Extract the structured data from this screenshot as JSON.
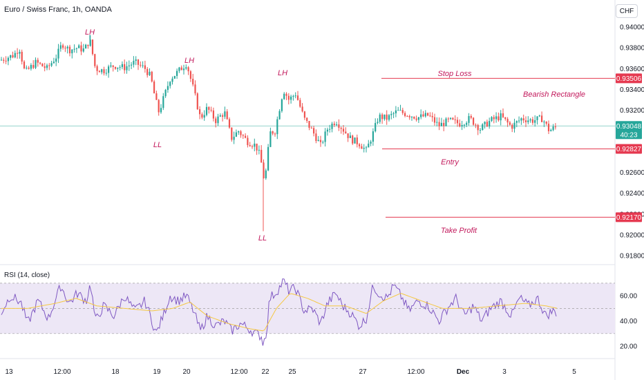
{
  "header": {
    "title": "Euro / Swiss Franc, 1h, OANDA",
    "currency": "CHF"
  },
  "colors": {
    "up": "#26a69a",
    "down": "#ef5350",
    "annotation": "#c2185b",
    "level_line": "#e53950",
    "current_line": "#4db6ac",
    "rsi_line": "#7e57c2",
    "rsi_ma": "#f5c842",
    "rsi_band": "#ede7f6"
  },
  "chart_data": [
    {
      "type": "candlestick",
      "title": "Euro / Swiss Franc, 1h, OANDA",
      "ylim": [
        0.9172,
        0.9426
      ],
      "y_ticks": [
        "0.94000",
        "0.93800",
        "0.93600",
        "0.93400",
        "0.93200",
        "0.92600",
        "0.92400",
        "0.92200",
        "0.92000",
        "0.91800"
      ],
      "x_ticks": [
        "13",
        "12:00",
        "18",
        "19",
        "20",
        "12:00",
        "22",
        "25",
        "27",
        "12:00",
        "Dec",
        "3",
        "5"
      ],
      "price_labels": {
        "stop_loss": "0.93506",
        "current": "0.93048",
        "countdown": "40:23",
        "entry": "0.92827",
        "take_profit": "0.92170"
      },
      "levels": {
        "stop_loss": 0.93506,
        "current": 0.93048,
        "entry": 0.92827,
        "take_profit": 0.9217
      },
      "annotations": [
        "LH",
        "LL",
        "LH",
        "LL",
        "LH",
        "LL",
        "Stop Loss",
        "Bearish Rectangle",
        "Entry",
        "Take Profit"
      ],
      "series_keypoints": [
        {
          "x": 0,
          "y": 0.9368
        },
        {
          "x": 20,
          "y": 0.9373
        },
        {
          "x": 28,
          "y": 0.938
        },
        {
          "x": 36,
          "y": 0.9356
        },
        {
          "x": 52,
          "y": 0.9366
        },
        {
          "x": 68,
          "y": 0.936
        },
        {
          "x": 82,
          "y": 0.9372
        },
        {
          "x": 90,
          "y": 0.9384
        },
        {
          "x": 100,
          "y": 0.9378
        },
        {
          "x": 112,
          "y": 0.938
        },
        {
          "x": 122,
          "y": 0.9378
        },
        {
          "x": 130,
          "y": 0.9388
        },
        {
          "x": 138,
          "y": 0.936
        },
        {
          "x": 150,
          "y": 0.9358
        },
        {
          "x": 165,
          "y": 0.9363
        },
        {
          "x": 180,
          "y": 0.9361
        },
        {
          "x": 195,
          "y": 0.9366
        },
        {
          "x": 210,
          "y": 0.936
        },
        {
          "x": 218,
          "y": 0.9352
        },
        {
          "x": 225,
          "y": 0.933
        },
        {
          "x": 230,
          "y": 0.9318
        },
        {
          "x": 236,
          "y": 0.933
        },
        {
          "x": 246,
          "y": 0.935
        },
        {
          "x": 256,
          "y": 0.9356
        },
        {
          "x": 265,
          "y": 0.9362
        },
        {
          "x": 270,
          "y": 0.9365
        },
        {
          "x": 280,
          "y": 0.934
        },
        {
          "x": 290,
          "y": 0.9312
        },
        {
          "x": 300,
          "y": 0.9322
        },
        {
          "x": 312,
          "y": 0.931
        },
        {
          "x": 325,
          "y": 0.9318
        },
        {
          "x": 335,
          "y": 0.9293
        },
        {
          "x": 345,
          "y": 0.93
        },
        {
          "x": 358,
          "y": 0.929
        },
        {
          "x": 370,
          "y": 0.9286
        },
        {
          "x": 377,
          "y": 0.9275
        },
        {
          "x": 381,
          "y": 0.9255
        },
        {
          "x": 386,
          "y": 0.9263
        },
        {
          "x": 390,
          "y": 0.9298
        },
        {
          "x": 398,
          "y": 0.93
        },
        {
          "x": 404,
          "y": 0.932
        },
        {
          "x": 410,
          "y": 0.934
        },
        {
          "x": 418,
          "y": 0.933
        },
        {
          "x": 428,
          "y": 0.9336
        },
        {
          "x": 440,
          "y": 0.9312
        },
        {
          "x": 452,
          "y": 0.93
        },
        {
          "x": 464,
          "y": 0.9286
        },
        {
          "x": 474,
          "y": 0.9302
        },
        {
          "x": 486,
          "y": 0.931
        },
        {
          "x": 496,
          "y": 0.9302
        },
        {
          "x": 508,
          "y": 0.9292
        },
        {
          "x": 520,
          "y": 0.9288
        },
        {
          "x": 530,
          "y": 0.9281
        },
        {
          "x": 540,
          "y": 0.9298
        },
        {
          "x": 548,
          "y": 0.9314
        },
        {
          "x": 560,
          "y": 0.9312
        },
        {
          "x": 575,
          "y": 0.9319
        },
        {
          "x": 590,
          "y": 0.9316
        },
        {
          "x": 605,
          "y": 0.9313
        },
        {
          "x": 620,
          "y": 0.9315
        },
        {
          "x": 635,
          "y": 0.9305
        },
        {
          "x": 650,
          "y": 0.931
        },
        {
          "x": 665,
          "y": 0.9307
        },
        {
          "x": 680,
          "y": 0.9312
        },
        {
          "x": 695,
          "y": 0.9302
        },
        {
          "x": 710,
          "y": 0.931
        },
        {
          "x": 725,
          "y": 0.9314
        },
        {
          "x": 740,
          "y": 0.9304
        },
        {
          "x": 755,
          "y": 0.9312
        },
        {
          "x": 770,
          "y": 0.931
        },
        {
          "x": 785,
          "y": 0.9312
        },
        {
          "x": 795,
          "y": 0.93
        },
        {
          "x": 807,
          "y": 0.9305
        }
      ]
    },
    {
      "type": "line",
      "title": "RSI (14, close)",
      "ylim": [
        14,
        82
      ],
      "y_ticks": [
        "60.00",
        "40.00",
        "20.00"
      ],
      "bands": [
        70,
        50,
        30
      ],
      "series": [
        {
          "name": "RSI",
          "keypoints": [
            {
              "x": 0,
              "y": 45
            },
            {
              "x": 15,
              "y": 60
            },
            {
              "x": 30,
              "y": 55
            },
            {
              "x": 40,
              "y": 38
            },
            {
              "x": 55,
              "y": 56
            },
            {
              "x": 70,
              "y": 42
            },
            {
              "x": 88,
              "y": 68
            },
            {
              "x": 100,
              "y": 54
            },
            {
              "x": 112,
              "y": 62
            },
            {
              "x": 125,
              "y": 56
            },
            {
              "x": 131,
              "y": 70
            },
            {
              "x": 138,
              "y": 40
            },
            {
              "x": 150,
              "y": 52
            },
            {
              "x": 165,
              "y": 44
            },
            {
              "x": 180,
              "y": 60
            },
            {
              "x": 195,
              "y": 48
            },
            {
              "x": 210,
              "y": 56
            },
            {
              "x": 220,
              "y": 40
            },
            {
              "x": 226,
              "y": 30
            },
            {
              "x": 236,
              "y": 44
            },
            {
              "x": 246,
              "y": 60
            },
            {
              "x": 258,
              "y": 56
            },
            {
              "x": 270,
              "y": 60
            },
            {
              "x": 280,
              "y": 48
            },
            {
              "x": 290,
              "y": 32
            },
            {
              "x": 300,
              "y": 44
            },
            {
              "x": 312,
              "y": 36
            },
            {
              "x": 325,
              "y": 40
            },
            {
              "x": 335,
              "y": 32
            },
            {
              "x": 348,
              "y": 38
            },
            {
              "x": 360,
              "y": 34
            },
            {
              "x": 370,
              "y": 30
            },
            {
              "x": 378,
              "y": 28
            },
            {
              "x": 381,
              "y": 22
            },
            {
              "x": 386,
              "y": 32
            },
            {
              "x": 390,
              "y": 58
            },
            {
              "x": 398,
              "y": 62
            },
            {
              "x": 404,
              "y": 66
            },
            {
              "x": 410,
              "y": 72
            },
            {
              "x": 418,
              "y": 64
            },
            {
              "x": 428,
              "y": 66
            },
            {
              "x": 440,
              "y": 48
            },
            {
              "x": 452,
              "y": 50
            },
            {
              "x": 464,
              "y": 38
            },
            {
              "x": 474,
              "y": 54
            },
            {
              "x": 486,
              "y": 62
            },
            {
              "x": 496,
              "y": 52
            },
            {
              "x": 508,
              "y": 46
            },
            {
              "x": 520,
              "y": 36
            },
            {
              "x": 530,
              "y": 42
            },
            {
              "x": 540,
              "y": 68
            },
            {
              "x": 548,
              "y": 62
            },
            {
              "x": 560,
              "y": 58
            },
            {
              "x": 570,
              "y": 68
            },
            {
              "x": 580,
              "y": 60
            },
            {
              "x": 592,
              "y": 48
            },
            {
              "x": 605,
              "y": 56
            },
            {
              "x": 620,
              "y": 52
            },
            {
              "x": 635,
              "y": 40
            },
            {
              "x": 650,
              "y": 52
            },
            {
              "x": 660,
              "y": 58
            },
            {
              "x": 672,
              "y": 44
            },
            {
              "x": 685,
              "y": 52
            },
            {
              "x": 697,
              "y": 40
            },
            {
              "x": 710,
              "y": 50
            },
            {
              "x": 725,
              "y": 56
            },
            {
              "x": 740,
              "y": 44
            },
            {
              "x": 752,
              "y": 58
            },
            {
              "x": 765,
              "y": 52
            },
            {
              "x": 778,
              "y": 58
            },
            {
              "x": 790,
              "y": 44
            },
            {
              "x": 800,
              "y": 48
            },
            {
              "x": 807,
              "y": 46
            }
          ]
        },
        {
          "name": "RSI-based MA",
          "keypoints": [
            {
              "x": 0,
              "y": 50
            },
            {
              "x": 40,
              "y": 50
            },
            {
              "x": 80,
              "y": 54
            },
            {
              "x": 110,
              "y": 58
            },
            {
              "x": 140,
              "y": 52
            },
            {
              "x": 180,
              "y": 50
            },
            {
              "x": 220,
              "y": 48
            },
            {
              "x": 250,
              "y": 50
            },
            {
              "x": 275,
              "y": 55
            },
            {
              "x": 300,
              "y": 44
            },
            {
              "x": 330,
              "y": 38
            },
            {
              "x": 360,
              "y": 34
            },
            {
              "x": 382,
              "y": 32
            },
            {
              "x": 400,
              "y": 50
            },
            {
              "x": 420,
              "y": 62
            },
            {
              "x": 445,
              "y": 58
            },
            {
              "x": 470,
              "y": 52
            },
            {
              "x": 500,
              "y": 52
            },
            {
              "x": 530,
              "y": 46
            },
            {
              "x": 555,
              "y": 56
            },
            {
              "x": 580,
              "y": 62
            },
            {
              "x": 610,
              "y": 56
            },
            {
              "x": 640,
              "y": 50
            },
            {
              "x": 680,
              "y": 50
            },
            {
              "x": 720,
              "y": 52
            },
            {
              "x": 760,
              "y": 54
            },
            {
              "x": 790,
              "y": 52
            },
            {
              "x": 807,
              "y": 50
            }
          ]
        }
      ]
    }
  ]
}
